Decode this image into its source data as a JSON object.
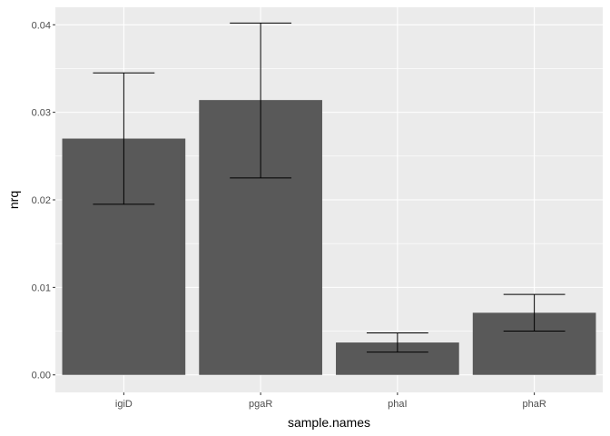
{
  "chart_data": {
    "type": "bar",
    "title": "",
    "xlabel": "sample.names",
    "ylabel": "nrq",
    "categories": [
      "igiD",
      "pgaR",
      "phaI",
      "phaR"
    ],
    "values": [
      0.027,
      0.0314,
      0.0037,
      0.0071
    ],
    "error_low": [
      0.0195,
      0.0225,
      0.0026,
      0.005
    ],
    "error_high": [
      0.0345,
      0.0402,
      0.0048,
      0.0092
    ],
    "ylim": [
      -0.002,
      0.042
    ],
    "y_ticks": [
      0.0,
      0.01,
      0.02,
      0.03,
      0.04
    ],
    "y_tick_labels": [
      "0.00",
      "0.01",
      "0.02",
      "0.03",
      "0.04"
    ],
    "grid": true,
    "legend": "none",
    "colors": {
      "panel_bg": "#ebebeb",
      "grid": "#ffffff",
      "bar": "#595959",
      "errorbar": "#000000",
      "tick_text": "#4d4d4d",
      "axis_text": "#000000"
    }
  }
}
